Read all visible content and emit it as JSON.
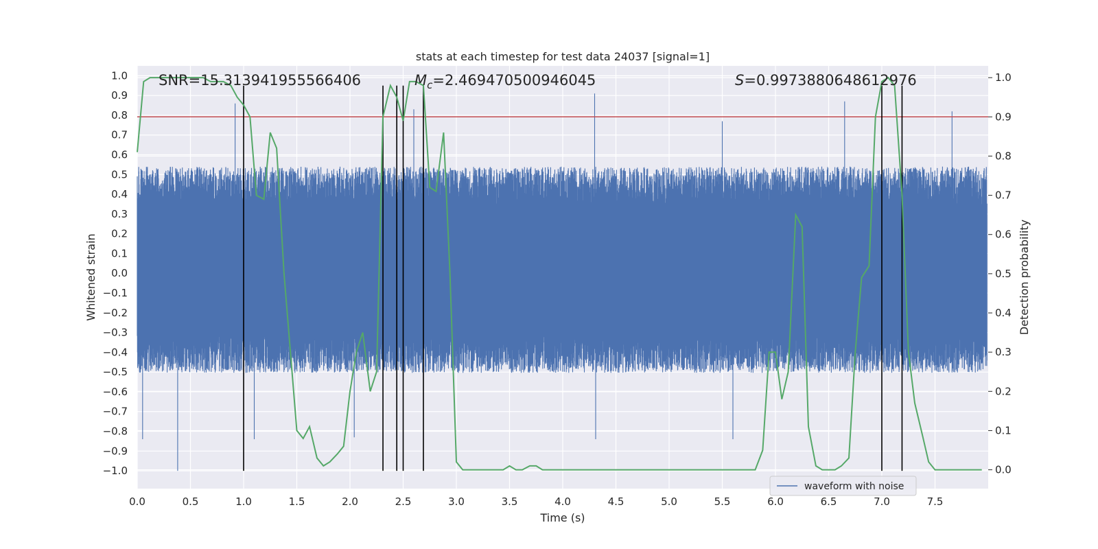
{
  "chart_data": {
    "type": "line",
    "title": "stats at each timestep for test data 24037 [signal=1]",
    "xlabel": "Time (s)",
    "ylabel_left": "Whitened strain",
    "ylabel_right": "Detection probability",
    "xlim": [
      0.0,
      8.0
    ],
    "ylim_left": [
      -1.09,
      1.05
    ],
    "ylim_right": [
      -0.048,
      1.03
    ],
    "x_ticks": [
      "0.0",
      "0.5",
      "1.0",
      "1.5",
      "2.0",
      "2.5",
      "3.0",
      "3.5",
      "4.0",
      "4.5",
      "5.0",
      "5.5",
      "6.0",
      "6.5",
      "7.0",
      "7.5"
    ],
    "y_ticks_left": [
      "1.0",
      "0.9",
      "0.8",
      "0.7",
      "0.6",
      "0.5",
      "0.4",
      "0.3",
      "0.2",
      "0.1",
      "0.0",
      "-0.1",
      "-0.2",
      "-0.3",
      "-0.4",
      "-0.5",
      "-0.6",
      "-0.7",
      "-0.8",
      "-0.9",
      "-1.0"
    ],
    "y_ticks_right": [
      "1.0",
      "0.9",
      "0.8",
      "0.7",
      "0.6",
      "0.5",
      "0.4",
      "0.3",
      "0.2",
      "0.1",
      "0.0"
    ],
    "grid": true,
    "legend": {
      "location": "lower-right",
      "entries": [
        "waveform with noise"
      ]
    },
    "annotations": {
      "snr": "SNR=15.313941955566406",
      "mc_symbol": "M",
      "mc_sub": "c",
      "mc_value": "=2.469470500946045",
      "s_symbol": "S",
      "s_value": "=0.9973880648612976"
    },
    "threshold": {
      "axis": "right",
      "value": 0.9,
      "color": "#c44e52"
    },
    "vertical_lines": {
      "x": [
        1.0,
        2.31,
        2.44,
        2.5,
        2.69,
        7.0,
        7.19
      ],
      "ymin": -1.0,
      "ymax": 0.95,
      "color": "#000000"
    },
    "waveform": {
      "name": "waveform with noise",
      "color": "#4c72b0",
      "sample_rate_hz": 512,
      "envelope_upper": 0.45,
      "envelope_lower": -0.42,
      "min": -1.0,
      "max": 0.92
    },
    "probability_series": {
      "name": "detection probability",
      "color": "#55a868",
      "x": [
        0.0,
        0.06,
        0.12,
        0.19,
        0.25,
        0.31,
        0.38,
        0.44,
        0.5,
        0.56,
        0.62,
        0.69,
        0.75,
        0.81,
        0.88,
        0.94,
        1.0,
        1.06,
        1.12,
        1.19,
        1.25,
        1.31,
        1.38,
        1.44,
        1.5,
        1.56,
        1.62,
        1.69,
        1.75,
        1.81,
        1.88,
        1.94,
        2.0,
        2.06,
        2.12,
        2.19,
        2.25,
        2.31,
        2.38,
        2.44,
        2.5,
        2.56,
        2.62,
        2.69,
        2.75,
        2.81,
        2.88,
        2.94,
        3.0,
        3.06,
        3.12,
        3.19,
        3.25,
        3.31,
        3.38,
        3.44,
        3.5,
        3.56,
        3.62,
        3.69,
        3.75,
        3.81,
        3.88,
        3.94,
        4.0,
        4.5,
        5.0,
        5.25,
        5.5,
        5.75,
        5.81,
        5.88,
        5.94,
        6.0,
        6.06,
        6.12,
        6.19,
        6.25,
        6.31,
        6.38,
        6.44,
        6.5,
        6.56,
        6.62,
        6.69,
        6.75,
        6.81,
        6.88,
        6.94,
        7.0,
        7.06,
        7.12,
        7.19,
        7.25,
        7.31,
        7.38,
        7.44,
        7.5,
        7.62,
        7.75,
        7.94
      ],
      "y": [
        0.81,
        0.99,
        1.0,
        1.0,
        1.0,
        1.0,
        1.0,
        1.0,
        1.0,
        1.0,
        1.0,
        0.99,
        0.99,
        0.99,
        0.98,
        0.95,
        0.93,
        0.9,
        0.7,
        0.69,
        0.86,
        0.82,
        0.5,
        0.3,
        0.1,
        0.08,
        0.11,
        0.03,
        0.01,
        0.02,
        0.04,
        0.06,
        0.2,
        0.3,
        0.35,
        0.2,
        0.25,
        0.9,
        0.98,
        0.95,
        0.89,
        0.99,
        0.99,
        0.98,
        0.72,
        0.71,
        0.86,
        0.5,
        0.02,
        0.0,
        0.0,
        0.0,
        0.0,
        0.0,
        0.0,
        0.0,
        0.01,
        0.0,
        0.0,
        0.01,
        0.01,
        0.0,
        0.0,
        0.0,
        0.0,
        0.0,
        0.0,
        0.0,
        0.0,
        0.0,
        0.0,
        0.05,
        0.3,
        0.3,
        0.18,
        0.25,
        0.65,
        0.62,
        0.11,
        0.01,
        0.0,
        0.0,
        0.0,
        0.01,
        0.03,
        0.3,
        0.49,
        0.52,
        0.9,
        0.99,
        1.0,
        0.98,
        0.7,
        0.3,
        0.17,
        0.09,
        0.02,
        0.0,
        0.0,
        0.0,
        0.0
      ]
    }
  }
}
